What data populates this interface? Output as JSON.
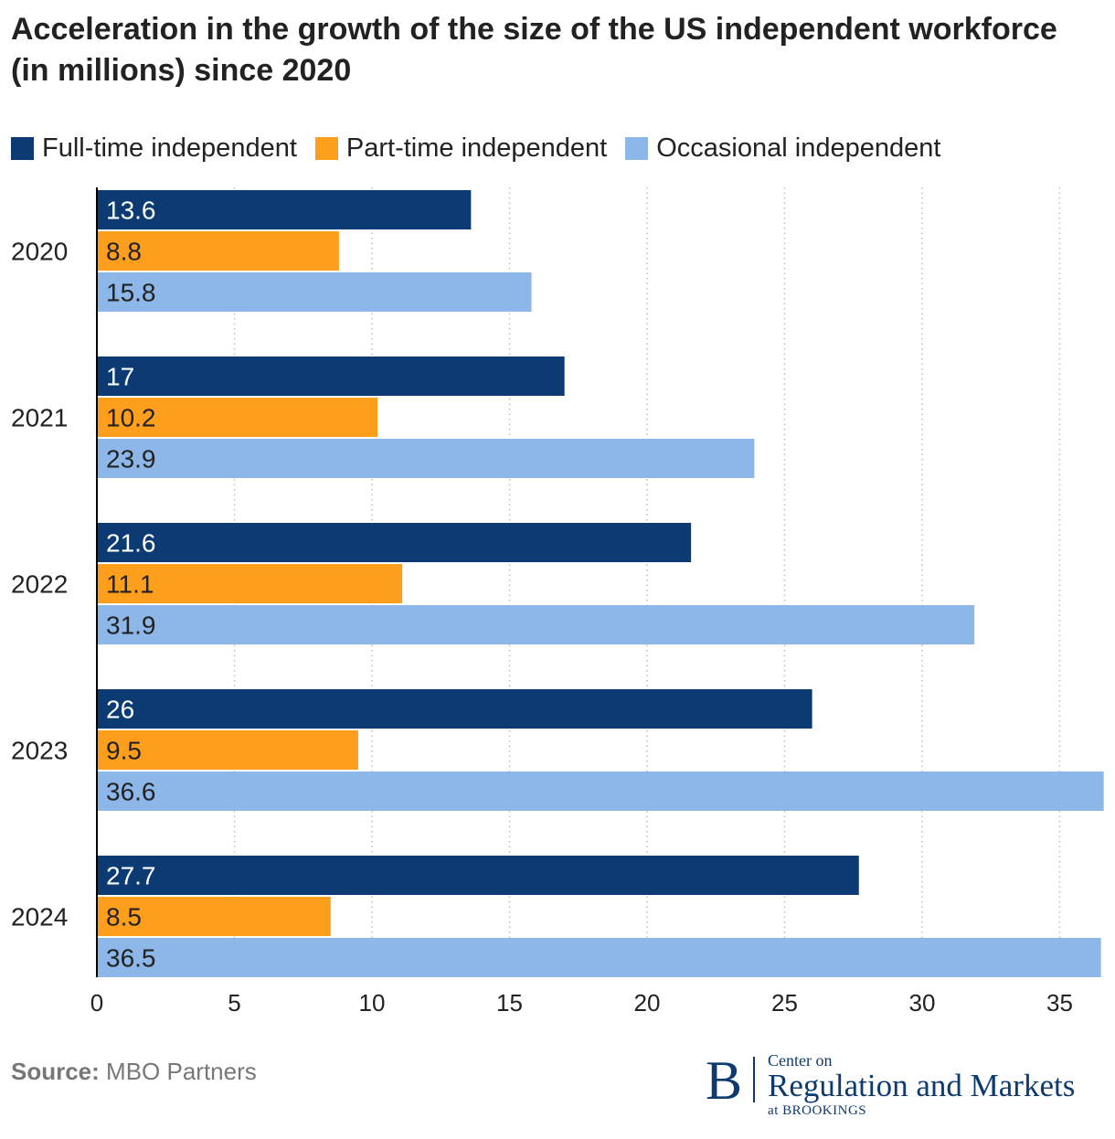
{
  "title": "Acceleration in the growth of the size of the US independent workforce (in millions) since 2020",
  "legend": [
    {
      "label": "Full-time independent",
      "color": "#0b3b72"
    },
    {
      "label": "Part-time independent",
      "color": "#fd9f1d"
    },
    {
      "label": "Occasional independent",
      "color": "#8db7e8"
    }
  ],
  "source": {
    "label": "Source:",
    "text": "MBO Partners"
  },
  "logo": {
    "letter": "B",
    "top": "Center on",
    "main": "Regulation and Markets",
    "bottom": "at BROOKINGS"
  },
  "chart_data": {
    "type": "bar",
    "orientation": "horizontal",
    "title": "Acceleration in the growth of the size of the US independent workforce (in millions) since 2020",
    "xlabel": "",
    "ylabel": "",
    "categories": [
      "2020",
      "2021",
      "2022",
      "2023",
      "2024"
    ],
    "series": [
      {
        "name": "Full-time independent",
        "color": "#0b3b72",
        "label_color": "#ffffff",
        "values": [
          13.6,
          17,
          21.6,
          26,
          27.7
        ],
        "labels": [
          "13.6",
          "17",
          "21.6",
          "26",
          "27.7"
        ]
      },
      {
        "name": "Part-time independent",
        "color": "#fd9f1d",
        "label_color": "#222222",
        "values": [
          8.8,
          10.2,
          11.1,
          9.5,
          8.5
        ],
        "labels": [
          "8.8",
          "10.2",
          "11.1",
          "9.5",
          "8.5"
        ]
      },
      {
        "name": "Occasional independent",
        "color": "#8db7e8",
        "label_color": "#222222",
        "values": [
          15.8,
          23.9,
          31.9,
          36.6,
          36.5
        ],
        "labels": [
          "15.8",
          "23.9",
          "31.9",
          "36.6",
          "36.5"
        ]
      }
    ],
    "xlim": [
      0,
      36.6
    ],
    "xticks": [
      0,
      5,
      10,
      15,
      20,
      25,
      30,
      35
    ],
    "grid": "vertical dotted",
    "legend_position": "top-left"
  }
}
